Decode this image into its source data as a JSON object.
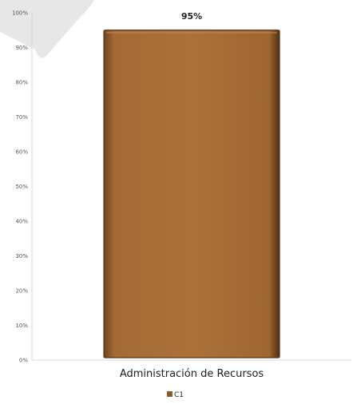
{
  "chart_data": {
    "type": "bar",
    "categories": [
      "Administración de Recursos"
    ],
    "series": [
      {
        "name": "C1",
        "values": [
          0.95
        ]
      }
    ],
    "data_labels": [
      "95%"
    ],
    "ylim": [
      0,
      1
    ],
    "yticks": [
      "0%",
      "10%",
      "20%",
      "30%",
      "40%",
      "50%",
      "60%",
      "70%",
      "80%",
      "90%",
      "100%"
    ],
    "grid": false,
    "legend_position": "bottom",
    "colors": {
      "bar_fill": "#a86f38",
      "bar_dark": "#5a3616",
      "bar_light": "#c58a4f",
      "axis": "#d9d9d9",
      "legend_swatch": "#8a5a2a"
    }
  }
}
